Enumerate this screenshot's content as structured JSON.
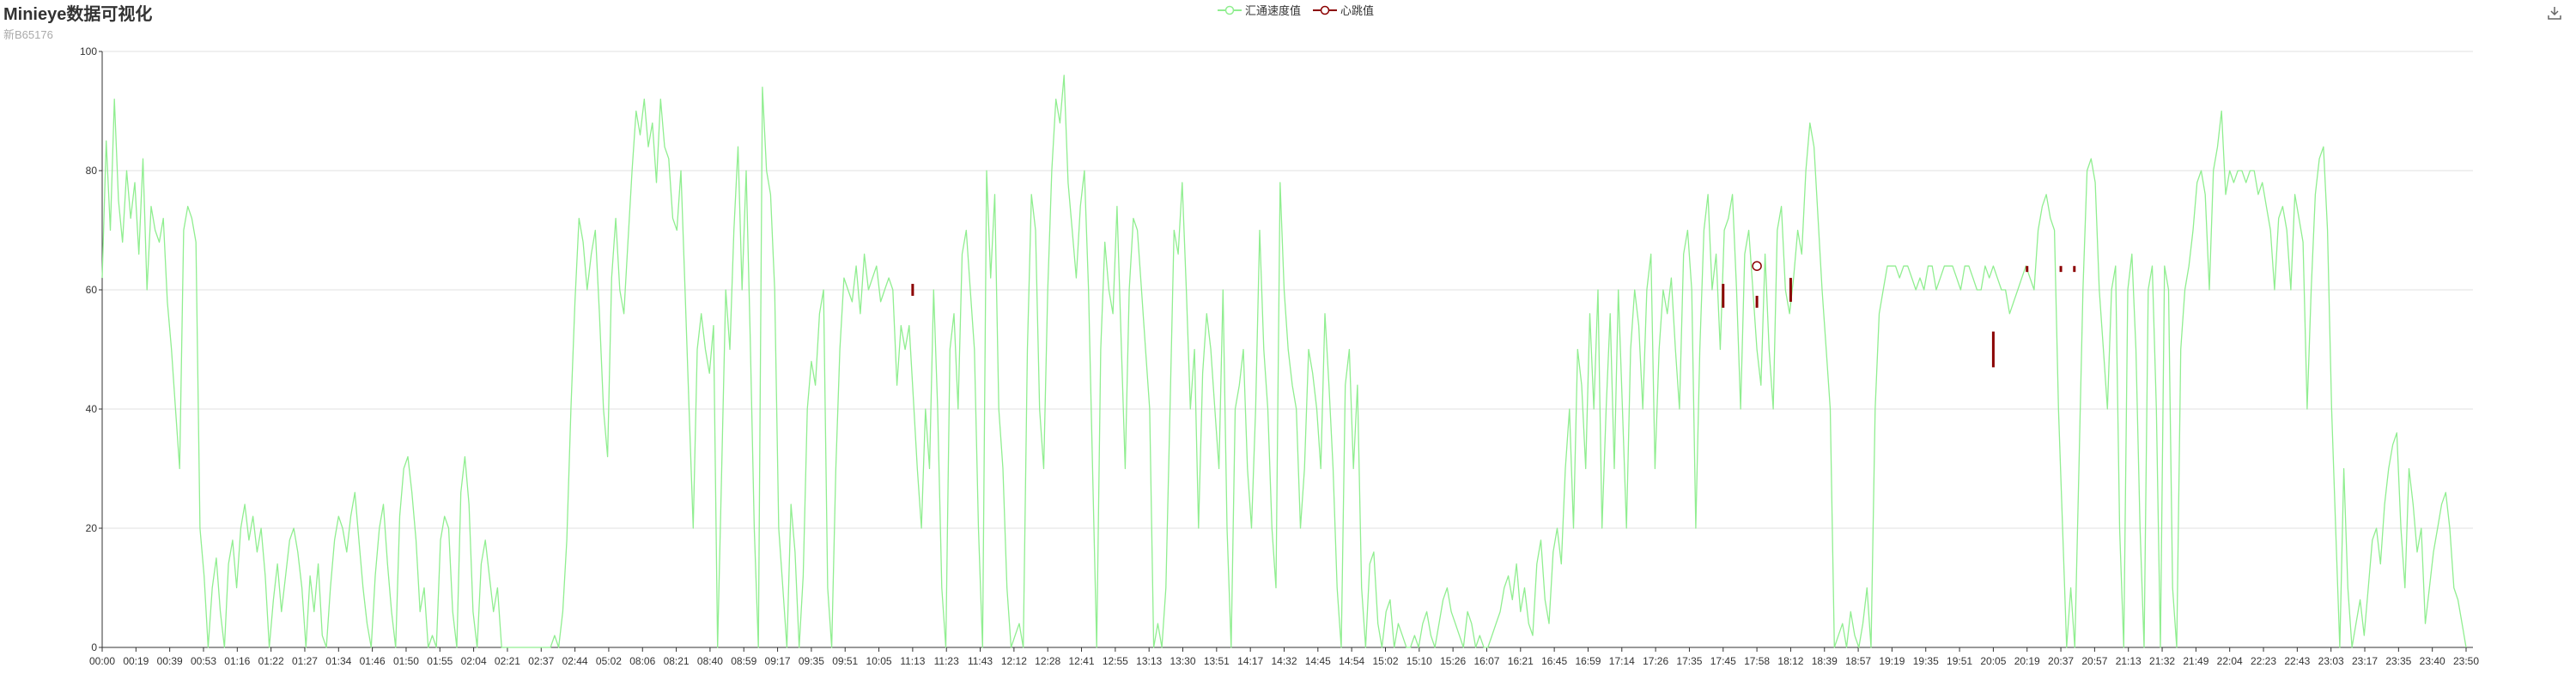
{
  "title": "Minieye数据可视化",
  "subtitle": "新B65176",
  "legend": [
    {
      "name": "汇通速度值",
      "color": "#90ee90"
    },
    {
      "name": "心跳值",
      "color": "#8b0000"
    }
  ],
  "toolbox_icon": "download-icon",
  "chart_data": {
    "type": "line",
    "ylim": [
      0,
      100
    ],
    "yticks": [
      0,
      20,
      40,
      60,
      80,
      100
    ],
    "grid": true,
    "legend_position": "top-center",
    "x_ticks": [
      "00:00",
      "00:19",
      "00:39",
      "00:53",
      "01:16",
      "01:22",
      "01:27",
      "01:34",
      "01:46",
      "01:50",
      "01:55",
      "02:04",
      "02:21",
      "02:37",
      "02:44",
      "05:02",
      "08:06",
      "08:21",
      "08:40",
      "08:59",
      "09:17",
      "09:35",
      "09:51",
      "10:05",
      "11:13",
      "11:23",
      "11:43",
      "12:12",
      "12:28",
      "12:41",
      "12:55",
      "13:13",
      "13:30",
      "13:51",
      "14:17",
      "14:32",
      "14:45",
      "14:54",
      "15:02",
      "15:10",
      "15:26",
      "16:07",
      "16:21",
      "16:45",
      "16:59",
      "17:14",
      "17:26",
      "17:35",
      "17:45",
      "17:58",
      "18:12",
      "18:39",
      "18:57",
      "19:19",
      "19:35",
      "19:51",
      "20:05",
      "20:19",
      "20:37",
      "20:57",
      "21:13",
      "21:32",
      "21:49",
      "22:04",
      "22:23",
      "22:43",
      "23:03",
      "23:17",
      "23:35",
      "23:40",
      "23:50"
    ],
    "series": [
      {
        "name": "汇通速度值",
        "color": "#90ee90",
        "values": [
          62,
          85,
          70,
          92,
          75,
          68,
          80,
          72,
          78,
          66,
          82,
          60,
          74,
          70,
          68,
          72,
          58,
          50,
          40,
          30,
          70,
          74,
          72,
          68,
          20,
          12,
          0,
          10,
          15,
          6,
          0,
          14,
          18,
          10,
          20,
          24,
          18,
          22,
          16,
          20,
          12,
          0,
          8,
          14,
          6,
          12,
          18,
          20,
          16,
          10,
          0,
          12,
          6,
          14,
          2,
          0,
          10,
          18,
          22,
          20,
          16,
          22,
          26,
          18,
          10,
          4,
          0,
          12,
          20,
          24,
          14,
          6,
          0,
          22,
          30,
          32,
          26,
          18,
          6,
          10,
          0,
          2,
          0,
          18,
          22,
          20,
          6,
          0,
          26,
          32,
          24,
          6,
          0,
          14,
          18,
          12,
          6,
          10,
          0,
          0,
          0,
          0,
          0,
          0,
          0,
          0,
          0,
          0,
          0,
          0,
          0,
          2,
          0,
          6,
          18,
          40,
          58,
          72,
          68,
          60,
          66,
          70,
          56,
          40,
          32,
          62,
          72,
          60,
          56,
          68,
          80,
          90,
          86,
          92,
          84,
          88,
          78,
          92,
          84,
          82,
          72,
          70,
          80,
          60,
          40,
          20,
          50,
          56,
          50,
          46,
          54,
          0,
          30,
          60,
          50,
          70,
          84,
          60,
          80,
          52,
          20,
          0,
          94,
          80,
          76,
          60,
          20,
          10,
          0,
          24,
          16,
          0,
          12,
          40,
          48,
          44,
          56,
          60,
          10,
          0,
          30,
          50,
          62,
          60,
          58,
          64,
          56,
          66,
          60,
          62,
          64,
          58,
          60,
          62,
          60,
          44,
          54,
          50,
          54,
          42,
          30,
          20,
          40,
          30,
          60,
          40,
          10,
          0,
          50,
          56,
          40,
          66,
          70,
          60,
          50,
          20,
          0,
          80,
          62,
          76,
          40,
          30,
          10,
          0,
          2,
          4,
          0,
          50,
          76,
          70,
          40,
          30,
          60,
          80,
          92,
          88,
          96,
          78,
          70,
          62,
          74,
          80,
          60,
          30,
          0,
          50,
          68,
          60,
          56,
          74,
          52,
          30,
          60,
          72,
          70,
          60,
          50,
          40,
          0,
          4,
          0,
          10,
          40,
          70,
          66,
          78,
          60,
          40,
          50,
          20,
          46,
          56,
          50,
          40,
          30,
          60,
          20,
          0,
          40,
          44,
          50,
          30,
          20,
          40,
          70,
          50,
          40,
          20,
          10,
          78,
          60,
          50,
          44,
          40,
          20,
          30,
          50,
          46,
          40,
          30,
          56,
          44,
          30,
          10,
          0,
          44,
          50,
          30,
          44,
          10,
          0,
          14,
          16,
          4,
          0,
          6,
          8,
          0,
          4,
          2,
          0,
          0,
          2,
          0,
          4,
          6,
          2,
          0,
          4,
          8,
          10,
          6,
          4,
          2,
          0,
          6,
          4,
          0,
          2,
          0,
          0,
          2,
          4,
          6,
          10,
          12,
          8,
          14,
          6,
          10,
          4,
          2,
          14,
          18,
          8,
          4,
          16,
          20,
          14,
          30,
          40,
          20,
          50,
          44,
          30,
          56,
          40,
          60,
          20,
          40,
          56,
          30,
          60,
          40,
          20,
          50,
          60,
          54,
          40,
          60,
          66,
          30,
          50,
          60,
          56,
          62,
          50,
          40,
          66,
          70,
          60,
          20,
          50,
          70,
          76,
          60,
          66,
          50,
          70,
          72,
          76,
          60,
          40,
          66,
          70,
          60,
          50,
          44,
          66,
          50,
          40,
          70,
          74,
          60,
          56,
          62,
          70,
          66,
          80,
          88,
          84,
          72,
          60,
          50,
          40,
          0,
          2,
          4,
          0,
          6,
          2,
          0,
          4,
          10,
          0,
          40,
          56,
          60,
          64,
          64,
          64,
          62,
          64,
          64,
          62,
          60,
          62,
          60,
          64,
          64,
          60,
          62,
          64,
          64,
          64,
          62,
          60,
          64,
          64,
          62,
          60,
          60,
          64,
          62,
          64,
          62,
          60,
          60,
          56,
          58,
          60,
          62,
          64,
          62,
          60,
          70,
          74,
          76,
          72,
          70,
          40,
          20,
          0,
          10,
          0,
          30,
          60,
          80,
          82,
          78,
          60,
          50,
          40,
          60,
          64,
          20,
          0,
          60,
          66,
          50,
          20,
          0,
          60,
          64,
          40,
          0,
          64,
          60,
          10,
          0,
          50,
          60,
          64,
          70,
          78,
          80,
          76,
          60,
          80,
          84,
          90,
          76,
          80,
          78,
          80,
          80,
          78,
          80,
          80,
          76,
          78,
          74,
          70,
          60,
          72,
          74,
          70,
          60,
          76,
          72,
          68,
          40,
          60,
          76,
          82,
          84,
          70,
          40,
          20,
          0,
          30,
          10,
          0,
          4,
          8,
          2,
          10,
          18,
          20,
          14,
          24,
          30,
          34,
          36,
          20,
          10,
          30,
          24,
          16,
          20,
          4,
          10,
          16,
          20,
          24,
          26,
          20,
          10,
          8,
          4,
          0
        ]
      },
      {
        "name": "心跳值",
        "color": "#8b0000",
        "segments": [
          {
            "at": "11:13",
            "low": 59,
            "high": 61
          },
          {
            "at": "17:45",
            "low": 57,
            "high": 61
          },
          {
            "at": "17:58",
            "low": 57,
            "high": 59
          },
          {
            "at": "18:12",
            "low": 58,
            "high": 62
          },
          {
            "at": "20:05",
            "low": 47,
            "high": 53
          },
          {
            "at": "20:19",
            "low": 63,
            "high": 64
          },
          {
            "at": "20:37",
            "low": 63,
            "high": 64
          },
          {
            "at": "20:45",
            "low": 63,
            "high": 64
          }
        ],
        "marker": {
          "at": "17:58",
          "value": 64
        }
      }
    ]
  }
}
